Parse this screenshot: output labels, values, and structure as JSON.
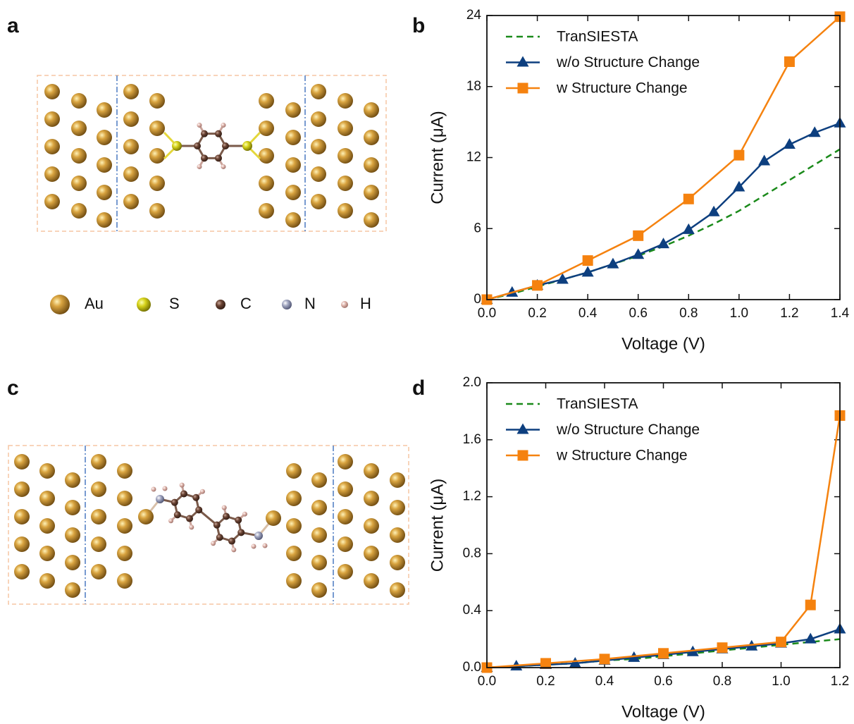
{
  "panel_labels": [
    "a",
    "b",
    "c",
    "d"
  ],
  "atom_legend": [
    "Au",
    "S",
    "C",
    "N",
    "H"
  ],
  "chart_data": [
    {
      "type": "line",
      "x_label": "Voltage (V)",
      "y_label": "Current (μA)",
      "xlim": [
        0,
        1.4
      ],
      "xticks": [
        {
          "value": 0,
          "label": "0.0"
        },
        {
          "value": 0.2,
          "label": "0.2"
        },
        {
          "value": 0.4,
          "label": "0.4"
        },
        {
          "value": 0.6,
          "label": "0.6"
        },
        {
          "value": 0.8,
          "label": "0.8"
        },
        {
          "value": 1.0,
          "label": "1.0"
        },
        {
          "value": 1.2,
          "label": "1.2"
        },
        {
          "value": 1.4,
          "label": "1.4"
        }
      ],
      "ylim": [
        0,
        24
      ],
      "yticks": [
        0,
        6,
        12,
        18,
        24
      ],
      "legend": "upper left",
      "series": [
        {
          "name": "TranSIESTA",
          "color": "#1a8a1a",
          "dash": true,
          "marker": null,
          "x": [
            0,
            0.1,
            0.2,
            0.3,
            0.4,
            0.5,
            0.6,
            0.7,
            0.8,
            0.9,
            1.0,
            1.1,
            1.2,
            1.3,
            1.4
          ],
          "values": [
            0,
            0.5,
            1.1,
            1.7,
            2.3,
            3.0,
            3.7,
            4.5,
            5.4,
            6.4,
            7.5,
            8.8,
            10.1,
            11.4,
            12.7
          ]
        },
        {
          "name": "w/o Structure Change",
          "color": "#0d3f7f",
          "dash": false,
          "marker": "triangle",
          "x": [
            0,
            0.1,
            0.2,
            0.3,
            0.4,
            0.5,
            0.6,
            0.7,
            0.8,
            0.9,
            1.0,
            1.1,
            1.2,
            1.3,
            1.4
          ],
          "values": [
            0,
            0.6,
            1.2,
            1.7,
            2.3,
            3.0,
            3.8,
            4.7,
            5.9,
            7.4,
            9.5,
            11.7,
            13.1,
            14.1,
            14.9
          ]
        },
        {
          "name": "w Structure Change",
          "color": "#f5820f",
          "dash": false,
          "marker": "square",
          "x": [
            0,
            0.2,
            0.4,
            0.6,
            0.8,
            1.0,
            1.2,
            1.4
          ],
          "values": [
            0,
            1.2,
            3.3,
            5.4,
            8.5,
            12.2,
            20.1,
            23.9
          ]
        }
      ]
    },
    {
      "type": "line",
      "x_label": "Voltage (V)",
      "y_label": "Current (μA)",
      "xlim": [
        0,
        1.2
      ],
      "xticks": [
        {
          "value": 0,
          "label": "0.0"
        },
        {
          "value": 0.2,
          "label": "0.2"
        },
        {
          "value": 0.4,
          "label": "0.4"
        },
        {
          "value": 0.6,
          "label": "0.6"
        },
        {
          "value": 0.8,
          "label": "0.8"
        },
        {
          "value": 1.0,
          "label": "1.0"
        },
        {
          "value": 1.2,
          "label": "1.2"
        }
      ],
      "ylim": [
        0,
        2.0
      ],
      "yticks": [
        {
          "value": 0,
          "label": "0.0"
        },
        {
          "value": 0.4,
          "label": "0.4"
        },
        {
          "value": 0.8,
          "label": "0.8"
        },
        {
          "value": 1.2,
          "label": "1.2"
        },
        {
          "value": 1.6,
          "label": "1.6"
        },
        {
          "value": 2.0,
          "label": "2.0"
        }
      ],
      "legend": "upper left",
      "series": [
        {
          "name": "TranSIESTA",
          "color": "#1a8a1a",
          "dash": true,
          "marker": null,
          "x": [
            0,
            0.1,
            0.2,
            0.3,
            0.4,
            0.5,
            0.6,
            0.7,
            0.8,
            0.9,
            1.0,
            1.1,
            1.2
          ],
          "values": [
            0,
            0.01,
            0.02,
            0.03,
            0.05,
            0.06,
            0.08,
            0.1,
            0.12,
            0.14,
            0.16,
            0.18,
            0.2
          ]
        },
        {
          "name": "w/o Structure Change",
          "color": "#0d3f7f",
          "dash": false,
          "marker": "triangle",
          "x": [
            0,
            0.1,
            0.2,
            0.3,
            0.4,
            0.5,
            0.6,
            0.7,
            0.8,
            0.9,
            1.0,
            1.1,
            1.2
          ],
          "values": [
            0,
            0.01,
            0.02,
            0.03,
            0.05,
            0.07,
            0.09,
            0.11,
            0.13,
            0.15,
            0.17,
            0.2,
            0.27
          ]
        },
        {
          "name": "w Structure Change",
          "color": "#f5820f",
          "dash": false,
          "marker": "square",
          "x": [
            0,
            0.2,
            0.4,
            0.6,
            0.8,
            1.0,
            1.1,
            1.2
          ],
          "values": [
            0,
            0.03,
            0.06,
            0.1,
            0.14,
            0.18,
            0.44,
            1.77
          ]
        }
      ]
    }
  ]
}
